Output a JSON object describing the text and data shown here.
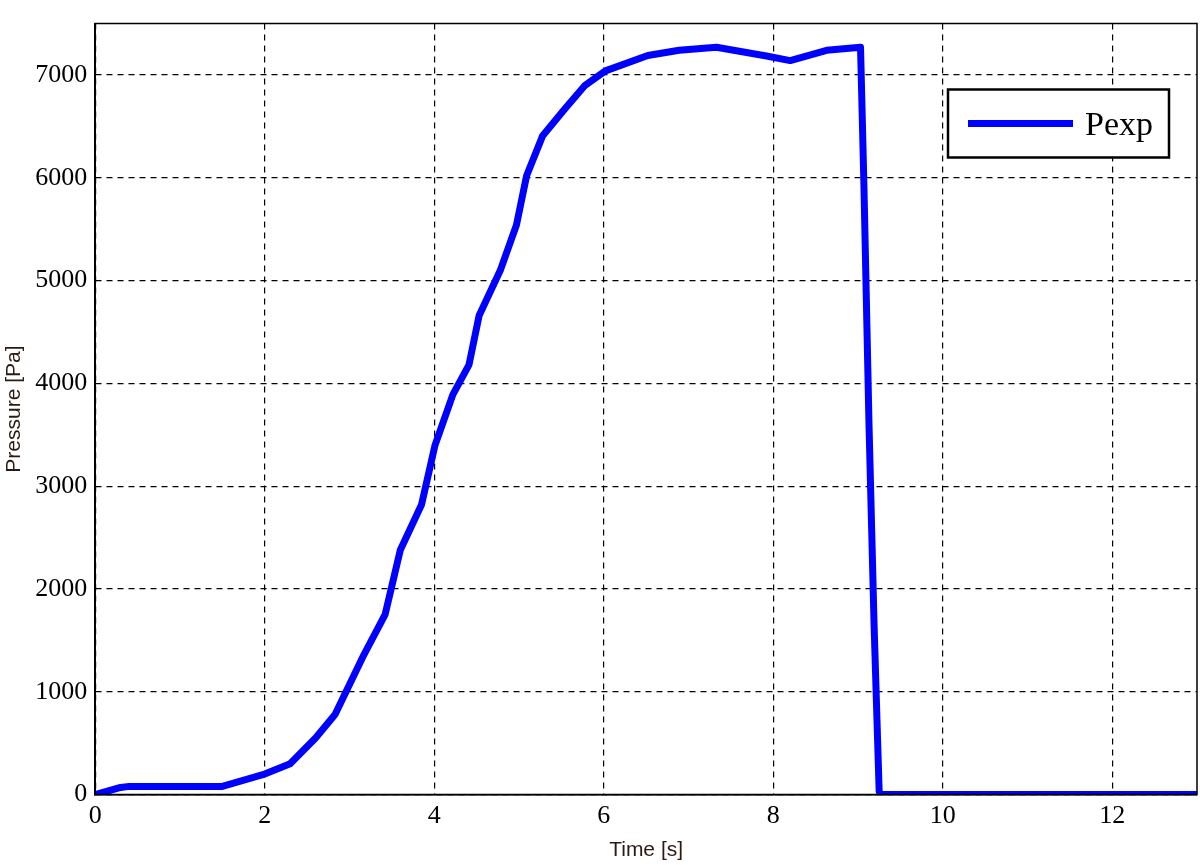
{
  "chart_data": {
    "type": "line",
    "xlabel": "Time [s]",
    "ylabel": "Pressure [Pa]",
    "xlim": [
      0,
      13
    ],
    "xticks": [
      0,
      2,
      4,
      6,
      8,
      10,
      12
    ],
    "ylim": [
      0,
      7500
    ],
    "yticks": [
      0,
      1000,
      2000,
      3000,
      4000,
      5000,
      6000,
      7000
    ],
    "grid": true,
    "legend": "top right",
    "line_style": "solid",
    "marker": "none",
    "series": [
      {
        "name": "Pexp",
        "color": "#0000ff",
        "x": [
          0,
          0.3,
          0.4,
          1.5,
          2.0,
          2.3,
          2.6,
          2.83,
          3.17,
          3.42,
          3.6,
          3.85,
          4.01,
          4.22,
          4.41,
          4.53,
          4.78,
          4.97,
          5.09,
          5.28,
          5.53,
          5.78,
          6.02,
          6.52,
          6.89,
          7.33,
          7.89,
          8.2,
          8.63,
          9.03,
          9.07,
          9.13,
          9.19,
          9.25,
          9.28,
          13
        ],
        "values": [
          0,
          70,
          80,
          80,
          200,
          300,
          550,
          780,
          1360,
          1750,
          2380,
          2820,
          3400,
          3890,
          4180,
          4660,
          5100,
          5540,
          6020,
          6410,
          6660,
          6900,
          7040,
          7190,
          7240,
          7270,
          7190,
          7140,
          7240,
          7270,
          5930,
          3600,
          1650,
          30,
          0,
          0
        ]
      }
    ]
  }
}
